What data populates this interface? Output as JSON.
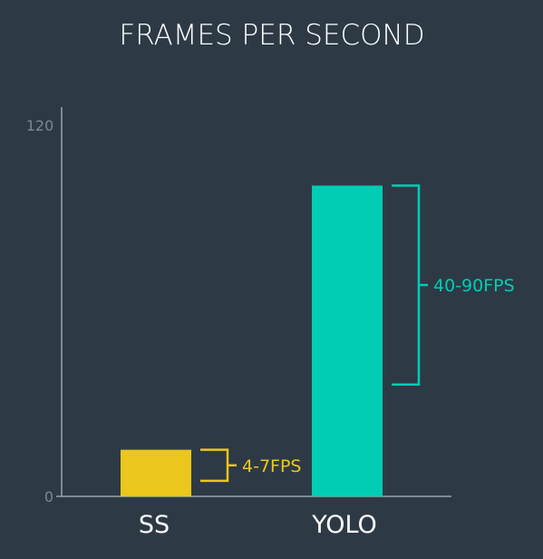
{
  "chart_data": {
    "type": "bar",
    "title": "FRAMES PER SECOND",
    "xlabel": "",
    "ylabel": "",
    "ylim": [
      0,
      120
    ],
    "yticks": [
      0,
      120
    ],
    "categories": [
      "SS",
      "YOLO"
    ],
    "values": [
      15,
      100
    ],
    "colors": [
      "#ebc61d",
      "#00cdb4"
    ],
    "grid": false,
    "legend": "none",
    "annotations": [
      {
        "category": "SS",
        "label": "4-7FPS",
        "range": [
          5,
          15
        ],
        "color": "#ebc61d"
      },
      {
        "category": "YOLO",
        "label": "40-90FPS",
        "range": [
          36,
          100
        ],
        "color": "#00cdb4"
      }
    ]
  }
}
